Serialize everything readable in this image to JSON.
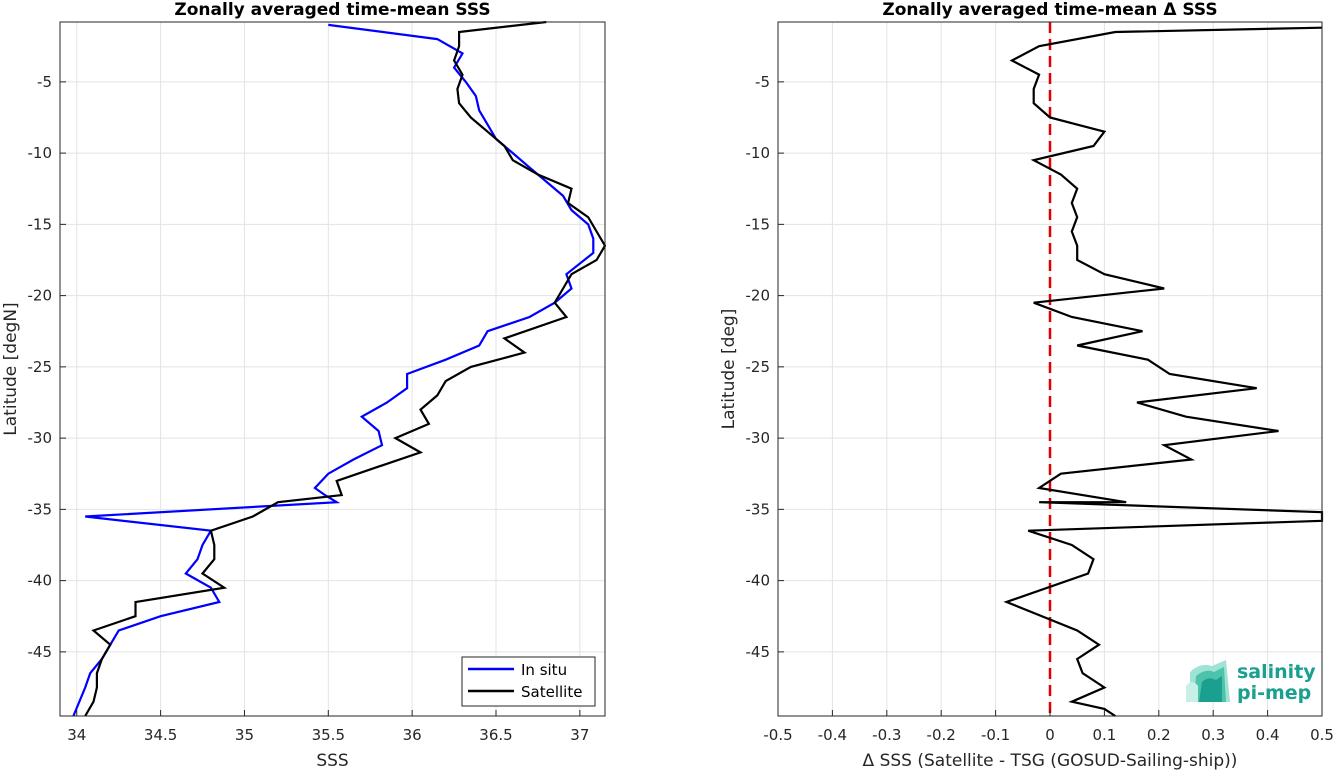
{
  "chart_data": [
    {
      "type": "line",
      "title": "Zonally averaged time-mean SSS",
      "xlabel": "SSS",
      "ylabel": "Latitude [degN]",
      "xlim": [
        33.9,
        37.15
      ],
      "ylim": [
        -49.5,
        -0.8
      ],
      "xticks": [
        34,
        34.5,
        35,
        35.5,
        36,
        36.5,
        37
      ],
      "xtick_labels": [
        "34",
        "34.5",
        "35",
        "35.5",
        "36",
        "36.5",
        "37"
      ],
      "yticks": [
        -5,
        -10,
        -15,
        -20,
        -25,
        -30,
        -35,
        -40,
        -45
      ],
      "ytick_labels": [
        "-5",
        "-10",
        "-15",
        "-20",
        "-25",
        "-30",
        "-35",
        "-40",
        "-45"
      ],
      "grid": true,
      "legend": "bottom-right",
      "series": [
        {
          "name": "In situ",
          "color": "#0000ff",
          "x": [
            35.5,
            36.15,
            36.3,
            36.25,
            36.32,
            36.38,
            36.4,
            36.45,
            36.5,
            36.6,
            36.7,
            36.8,
            36.9,
            36.95,
            37.05,
            37.08,
            37.08,
            36.92,
            36.95,
            36.85,
            36.7,
            36.45,
            36.4,
            36.2,
            35.97,
            35.97,
            35.85,
            35.7,
            35.8,
            35.82,
            35.65,
            35.5,
            35.42,
            35.48,
            35.55,
            34.05,
            34.8,
            34.75,
            34.72,
            34.65,
            34.8,
            34.85,
            34.5,
            34.25,
            34.2,
            34.15,
            34.08,
            34.05,
            33.98
          ],
          "y": [
            -1,
            -2,
            -3,
            -4,
            -5,
            -6,
            -7,
            -8,
            -9,
            -10,
            -11,
            -12,
            -13,
            -14,
            -15,
            -16,
            -17,
            -18.5,
            -19.5,
            -20.5,
            -21.5,
            -22.5,
            -23.5,
            -24.5,
            -25.5,
            -26.5,
            -27.5,
            -28.5,
            -29.5,
            -30.5,
            -31.5,
            -32.5,
            -33.5,
            -34,
            -34.5,
            -35.5,
            -36.5,
            -37.5,
            -38.5,
            -39.5,
            -40.5,
            -41.5,
            -42.5,
            -43.5,
            -44.5,
            -45.5,
            -46.5,
            -47.5,
            -49.5
          ]
        },
        {
          "name": "Satellite",
          "color": "#000000",
          "x": [
            36.8,
            36.28,
            36.28,
            36.25,
            36.3,
            36.27,
            36.28,
            36.35,
            36.45,
            36.55,
            36.6,
            36.75,
            36.95,
            36.93,
            37.05,
            37.1,
            37.15,
            37.1,
            36.95,
            36.9,
            36.85,
            36.92,
            36.55,
            36.67,
            36.35,
            36.2,
            36.15,
            36.05,
            36.1,
            35.9,
            36.05,
            35.8,
            35.55,
            35.58,
            35.2,
            35.05,
            34.8,
            34.82,
            34.82,
            34.75,
            34.88,
            34.35,
            34.35,
            34.1,
            34.2,
            34.15,
            34.12,
            34.12,
            34.1,
            34.05
          ],
          "y": [
            -0.8,
            -1.5,
            -2.5,
            -3.5,
            -4.5,
            -5.5,
            -6.5,
            -7.5,
            -8.5,
            -9.5,
            -10.5,
            -11.5,
            -12.5,
            -13.5,
            -14.5,
            -15.5,
            -16.5,
            -17.5,
            -18.5,
            -19.5,
            -20.5,
            -21.5,
            -23,
            -24,
            -25,
            -26,
            -27,
            -28,
            -29,
            -30,
            -31,
            -32,
            -33,
            -34,
            -34.5,
            -35.5,
            -36.5,
            -37.5,
            -38.5,
            -39.5,
            -40.5,
            -41.5,
            -42.5,
            -43.5,
            -44.5,
            -45.5,
            -46.5,
            -47.5,
            -48.5,
            -49.5
          ]
        }
      ]
    },
    {
      "type": "line",
      "title": "Zonally averaged time-mean Δ SSS",
      "xlabel": "Δ SSS (Satellite - TSG (GOSUD-Sailing-ship))",
      "ylabel": "Latitude [deg]",
      "xlim": [
        -0.5,
        0.5
      ],
      "ylim": [
        -49.5,
        -0.8
      ],
      "xticks": [
        -0.5,
        -0.4,
        -0.3,
        -0.2,
        -0.1,
        0,
        0.1,
        0.2,
        0.3,
        0.4,
        0.5
      ],
      "xtick_labels": [
        "-0.5",
        "-0.4",
        "-0.3",
        "-0.2",
        "-0.1",
        "0",
        "0.1",
        "0.2",
        "0.3",
        "0.4",
        "0.5"
      ],
      "yticks": [
        -5,
        -10,
        -15,
        -20,
        -25,
        -30,
        -35,
        -40,
        -45
      ],
      "ytick_labels": [
        "-5",
        "-10",
        "-15",
        "-20",
        "-25",
        "-30",
        "-35",
        "-40",
        "-45"
      ],
      "grid": true,
      "reference_line": {
        "x": 0,
        "color": "#e00000",
        "style": "dashed"
      },
      "series": [
        {
          "color": "#000000",
          "x": [
            0.5,
            0.12,
            -0.02,
            -0.07,
            -0.02,
            -0.03,
            -0.03,
            0.0,
            0.1,
            0.08,
            -0.03,
            0.02,
            0.05,
            0.04,
            0.05,
            0.04,
            0.05,
            0.05,
            0.1,
            0.21,
            -0.03,
            0.04,
            0.17,
            0.05,
            0.18,
            0.22,
            0.38,
            0.16,
            0.25,
            0.42,
            0.21,
            0.26,
            0.02,
            -0.02,
            0.14,
            -0.02,
            0.5,
            0.5,
            -0.04,
            0.04,
            0.08,
            0.07,
            -0.08,
            0.05,
            0.09,
            0.05,
            0.06,
            0.1,
            0.04,
            0.1,
            0.12
          ],
          "y": [
            -1.2,
            -1.5,
            -2.5,
            -3.5,
            -4.5,
            -5.5,
            -6.5,
            -7.5,
            -8.5,
            -9.5,
            -10.5,
            -11.5,
            -12.5,
            -13.5,
            -14.5,
            -15.5,
            -16.5,
            -17.5,
            -18.5,
            -19.5,
            -20.5,
            -21.5,
            -22.5,
            -23.5,
            -24.5,
            -25.5,
            -26.5,
            -27.5,
            -28.5,
            -29.5,
            -30.5,
            -31.5,
            -32.5,
            -33.5,
            -34.5,
            -34.5,
            -35.2,
            -35.8,
            -36.5,
            -37.5,
            -38.5,
            -39.5,
            -41.5,
            -43.5,
            -44.5,
            -45.5,
            -46.5,
            -47.5,
            -48.5,
            -49.0,
            -49.5
          ]
        }
      ]
    }
  ],
  "logo": {
    "line1": "salinity",
    "line2": "pi-mep"
  }
}
